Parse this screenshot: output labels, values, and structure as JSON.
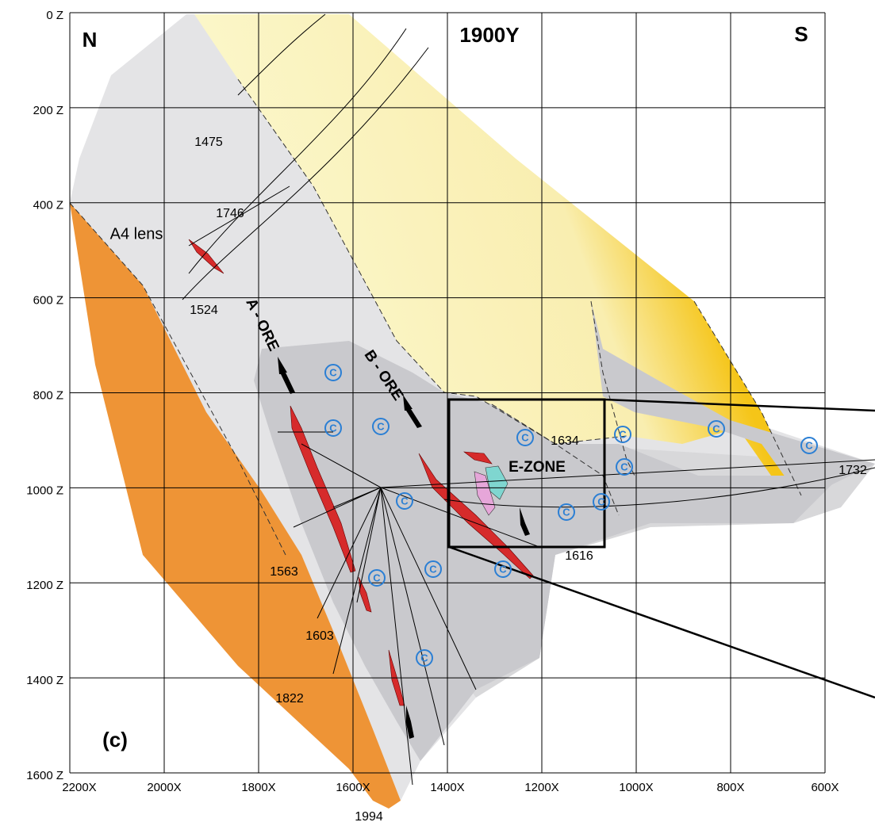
{
  "header": {
    "north": "N",
    "south": "S",
    "section": "1900Y",
    "panel": "(c)"
  },
  "axes": {
    "z_labels": [
      "0 Z",
      "200 Z",
      "400 Z",
      "600 Z",
      "800 Z",
      "1000 Z",
      "1200 Z",
      "1400 Z",
      "1600 Z"
    ],
    "x_labels": [
      "2200X",
      "2000X",
      "1800X",
      "1600X",
      "1400X",
      "1200X",
      "1000X",
      "800X",
      "600X"
    ]
  },
  "labels": {
    "a4_lens": "A4 lens",
    "a_ore": "A - ORE",
    "b_ore": "B - ORE",
    "e_zone": "E-ZONE"
  },
  "drill_holes": [
    "1475",
    "1746",
    "1524",
    "1634",
    "1732",
    "1616",
    "1563",
    "1603",
    "1822",
    "1994"
  ]
}
